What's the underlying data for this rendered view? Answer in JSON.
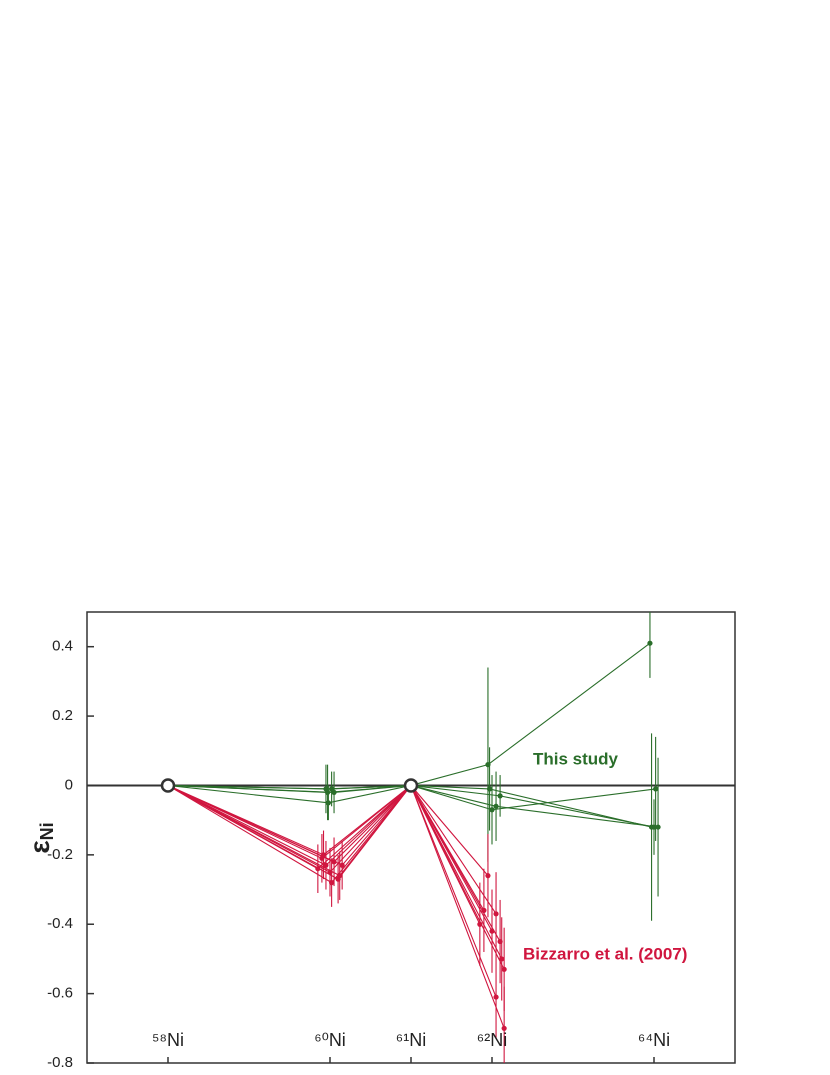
{
  "chart_data": {
    "type": "line",
    "y_label": "ε",
    "y_label_sub": "Ni",
    "xlim": [
      57,
      65
    ],
    "ylim": [
      -0.8,
      0.5
    ],
    "xticks": [
      {
        "value": 58,
        "label": "⁵⁸Ni"
      },
      {
        "value": 60,
        "label": "⁶⁰Ni"
      },
      {
        "value": 61,
        "label": "⁶¹Ni"
      },
      {
        "value": 62,
        "label": "⁶²Ni"
      },
      {
        "value": 64,
        "label": "⁶⁴Ni"
      }
    ],
    "yticks": [
      -0.8,
      -0.6,
      -0.4,
      -0.2,
      0,
      0.2,
      0.4
    ],
    "zero_line": true,
    "reference": {
      "x": [
        58,
        61
      ],
      "values": [
        0,
        0
      ]
    },
    "series": [
      {
        "name": "This study",
        "color": "#2a6e2a",
        "samples": [
          {
            "x": [
              58,
              59.95,
              61,
              61.95,
              63.95
            ],
            "values": [
              0,
              -0.01,
              0,
              0.06,
              0.41
            ],
            "errors": [
              null,
              0.07,
              null,
              0.28,
              0.1
            ]
          },
          {
            "x": [
              58,
              59.97,
              61,
              61.97,
              63.97
            ],
            "values": [
              0,
              -0.02,
              0,
              -0.01,
              -0.12
            ],
            "errors": [
              null,
              0.08,
              null,
              0.12,
              0.27
            ]
          },
          {
            "x": [
              58,
              60.05,
              61,
              62.1,
              64.0
            ],
            "values": [
              0,
              -0.02,
              0,
              -0.03,
              -0.12
            ],
            "errors": [
              null,
              0.06,
              null,
              0.06,
              0.08
            ]
          },
          {
            "x": [
              58,
              59.98,
              61,
              62.05,
              64.05
            ],
            "values": [
              0,
              -0.05,
              0,
              -0.06,
              -0.12
            ],
            "errors": [
              null,
              0.05,
              null,
              0.1,
              0.2
            ]
          },
          {
            "x": [
              58,
              60.02,
              61,
              62.0,
              64.02
            ],
            "values": [
              0,
              -0.01,
              0,
              -0.07,
              -0.01
            ],
            "errors": [
              null,
              0.05,
              null,
              0.1,
              0.15
            ]
          }
        ]
      },
      {
        "name": "Bizzarro et al. (2007)",
        "color": "#d0163f",
        "samples": [
          {
            "x": [
              58,
              59.9,
              61,
              61.9
            ],
            "values": [
              0,
              -0.21,
              0,
              -0.36
            ],
            "errors": [
              null,
              0.07,
              null,
              0.12
            ]
          },
          {
            "x": [
              58,
              59.95,
              61,
              61.95
            ],
            "values": [
              0,
              -0.23,
              0,
              -0.26
            ],
            "errors": [
              null,
              0.07,
              null,
              0.12
            ]
          },
          {
            "x": [
              58,
              60.0,
              61,
              62.0
            ],
            "values": [
              0,
              -0.25,
              0,
              -0.42
            ],
            "errors": [
              null,
              0.07,
              null,
              0.12
            ]
          },
          {
            "x": [
              58,
              60.05,
              61,
              62.05
            ],
            "values": [
              0,
              -0.22,
              0,
              -0.37
            ],
            "errors": [
              null,
              0.07,
              null,
              0.12
            ]
          },
          {
            "x": [
              58,
              60.1,
              61,
              62.1
            ],
            "values": [
              0,
              -0.27,
              0,
              -0.45
            ],
            "errors": [
              null,
              0.07,
              null,
              0.12
            ]
          },
          {
            "x": [
              58,
              59.85,
              61,
              61.85
            ],
            "values": [
              0,
              -0.24,
              0,
              -0.4
            ],
            "errors": [
              null,
              0.07,
              null,
              0.12
            ]
          },
          {
            "x": [
              58,
              60.12,
              61,
              62.12
            ],
            "values": [
              0,
              -0.26,
              0,
              -0.5
            ],
            "errors": [
              null,
              0.07,
              null,
              0.12
            ]
          },
          {
            "x": [
              58,
              60.15,
              61,
              62.15
            ],
            "values": [
              0,
              -0.23,
              0,
              -0.53
            ],
            "errors": [
              null,
              0.07,
              null,
              0.12
            ]
          },
          {
            "x": [
              58,
              60.02,
              61,
              62.05
            ],
            "values": [
              0,
              -0.28,
              0,
              -0.61
            ],
            "errors": [
              null,
              0.07,
              null,
              0.12
            ]
          },
          {
            "x": [
              58,
              59.92,
              61,
              62.15
            ],
            "values": [
              0,
              -0.2,
              0,
              -0.7
            ],
            "errors": [
              null,
              0.07,
              null,
              0.12
            ]
          }
        ]
      }
    ]
  }
}
